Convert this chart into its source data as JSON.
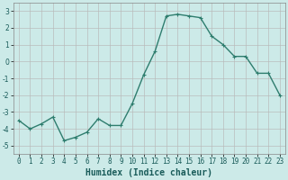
{
  "x": [
    0,
    1,
    2,
    3,
    4,
    5,
    6,
    7,
    8,
    9,
    10,
    11,
    12,
    13,
    14,
    15,
    16,
    17,
    18,
    19,
    20,
    21,
    22,
    23
  ],
  "y": [
    -3.5,
    -4.0,
    -3.7,
    -3.3,
    -4.7,
    -4.5,
    -4.2,
    -3.4,
    -3.8,
    -3.8,
    -2.5,
    -0.8,
    0.6,
    2.7,
    2.8,
    2.7,
    2.6,
    1.5,
    1.0,
    0.3,
    0.3,
    -0.7,
    -0.7,
    -2.0
  ],
  "line_color": "#2e7d6e",
  "marker": "+",
  "markersize": 3,
  "linewidth": 1.0,
  "bg_color": "#cceae8",
  "grid_color_major": "#b8b8b8",
  "grid_color_minor": "#d8d8d8",
  "xlabel": "Humidex (Indice chaleur)",
  "xlim": [
    -0.5,
    23.5
  ],
  "ylim": [
    -5.5,
    3.5
  ],
  "yticks": [
    -5,
    -4,
    -3,
    -2,
    -1,
    0,
    1,
    2,
    3
  ],
  "xtick_labels": [
    "0",
    "1",
    "2",
    "3",
    "4",
    "5",
    "6",
    "7",
    "8",
    "9",
    "10",
    "11",
    "12",
    "13",
    "14",
    "15",
    "16",
    "17",
    "18",
    "19",
    "20",
    "21",
    "22",
    "23"
  ],
  "tick_fontsize": 5.5,
  "xlabel_fontsize": 7,
  "xlabel_color": "#1a5c5a",
  "line_marker_color": "#2e7d6e",
  "spine_color": "#888888"
}
